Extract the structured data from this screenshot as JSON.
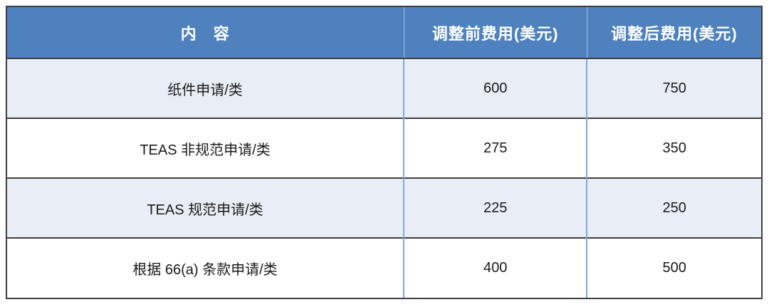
{
  "table": {
    "columns": [
      {
        "label": "内　容"
      },
      {
        "label": "调整前费用(美元)"
      },
      {
        "label": "调整后费用(美元)"
      }
    ],
    "rows": [
      {
        "item": "纸件申请/类",
        "fee_before": "600",
        "fee_after": "750"
      },
      {
        "item": "TEAS 非规范申请/类",
        "fee_before": "275",
        "fee_after": "350"
      },
      {
        "item": "TEAS 规范申请/类",
        "fee_before": "225",
        "fee_after": "250"
      },
      {
        "item": "根据 66(a) 条款申请/类",
        "fee_before": "400",
        "fee_after": "500"
      }
    ],
    "colors": {
      "header_bg": "#4E81BD",
      "header_text": "#FFFFFF",
      "row_alt_bg": "#E9EDF5",
      "row_bg": "#FFFFFF",
      "border_dark": "#3F3F3F",
      "column_separator": "#7FA9DB"
    }
  }
}
